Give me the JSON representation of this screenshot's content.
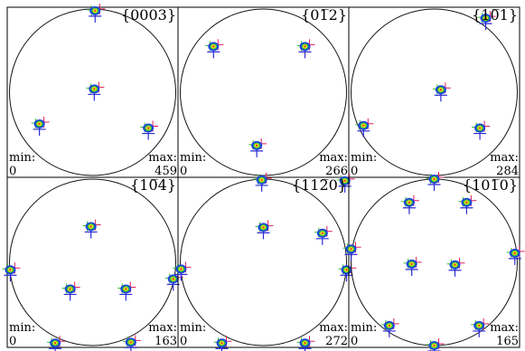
{
  "chart_data": [
    {
      "type": "scatter",
      "title": "{0003}",
      "min_label": "min:",
      "min_value": "0",
      "max_label": "max:",
      "max_value": "459",
      "poles": [
        [
          0.03,
          0.98
        ],
        [
          0.02,
          0.04
        ],
        [
          -0.64,
          -0.38
        ],
        [
          0.67,
          -0.43
        ]
      ]
    },
    {
      "type": "scatter",
      "title": "{01̅2}",
      "min_label": "min:",
      "min_value": "0",
      "max_label": "max:",
      "max_value": "266",
      "poles": [
        [
          -0.6,
          0.55
        ],
        [
          0.5,
          0.55
        ],
        [
          -0.08,
          -0.64
        ]
      ]
    },
    {
      "type": "scatter",
      "title": "{10̅1}",
      "min_label": "min:",
      "min_value": "0",
      "max_label": "max:",
      "max_value": "284",
      "poles": [
        [
          0.62,
          0.89
        ],
        [
          0.08,
          0.03
        ],
        [
          -0.85,
          -0.4
        ],
        [
          0.55,
          -0.43
        ]
      ]
    },
    {
      "type": "scatter",
      "title": "{10̅4}",
      "min_label": "min:",
      "min_value": "0",
      "max_label": "max:",
      "max_value": "163",
      "poles": [
        [
          -0.02,
          0.43
        ],
        [
          -0.99,
          -0.09
        ],
        [
          -0.27,
          -0.32
        ],
        [
          0.4,
          -0.32
        ],
        [
          0.97,
          -0.2
        ],
        [
          -0.45,
          -0.97
        ],
        [
          0.46,
          -0.96
        ]
      ]
    },
    {
      "type": "scatter",
      "title": "{112̅0}",
      "min_label": "min:",
      "min_value": "0",
      "max_label": "max:",
      "max_value": "272",
      "poles": [
        [
          -0.02,
          0.99
        ],
        [
          0.98,
          0.98
        ],
        [
          0.0,
          0.42
        ],
        [
          0.71,
          0.35
        ],
        [
          -0.99,
          -0.08
        ],
        [
          1.0,
          -0.09
        ],
        [
          -0.5,
          -0.97
        ],
        [
          0.5,
          -0.97
        ]
      ]
    },
    {
      "type": "scatter",
      "title": "{101̅0}",
      "min_label": "min:",
      "min_value": "0",
      "max_label": "max:",
      "max_value": "165",
      "poles": [
        [
          0.0,
          1.0
        ],
        [
          -0.3,
          0.72
        ],
        [
          0.39,
          0.72
        ],
        [
          -1.0,
          0.16
        ],
        [
          0.97,
          0.11
        ],
        [
          -0.27,
          -0.02
        ],
        [
          0.25,
          -0.03
        ],
        [
          -0.54,
          -0.76
        ],
        [
          0.54,
          -0.76
        ],
        [
          0.0,
          -1.0
        ]
      ]
    }
  ],
  "colors": {
    "circle": "#111111",
    "contour_outer": "#1f3fe0",
    "contour_inner": "#2dbf3a",
    "contour_core": "#f0e02a",
    "contour_peak": "#d83a1a",
    "cross_blue": "#2a2ad8",
    "cross_red": "#e0205a",
    "cross_green": "#30c030"
  }
}
